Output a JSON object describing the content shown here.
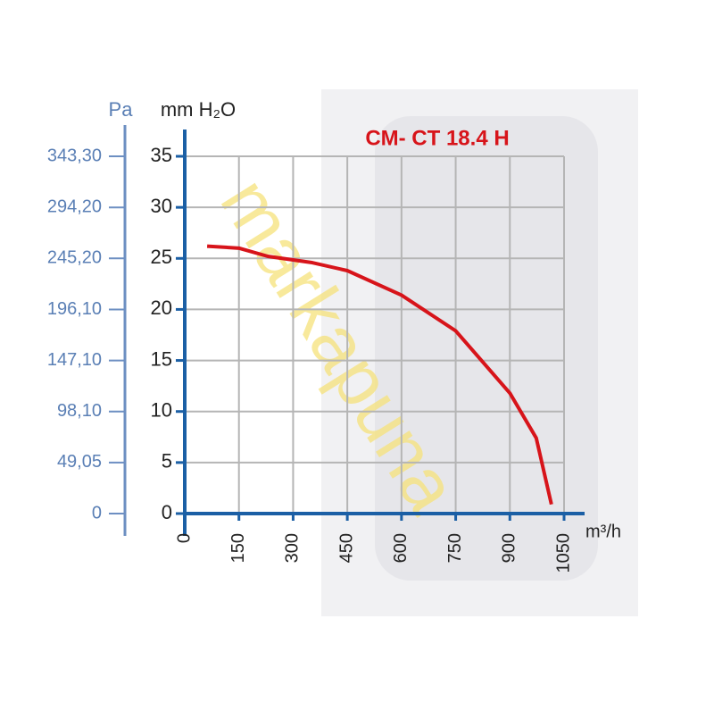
{
  "chart_data": {
    "type": "line",
    "title": "CM- CT 18.4 H",
    "ylabel": "mm H₂O",
    "y2label": "Pa",
    "xlabel": "m³/h",
    "watermark": "markapuna",
    "x": [
      62,
      150,
      230,
      350,
      450,
      600,
      750,
      900,
      973,
      1015
    ],
    "values": [
      26.2,
      26,
      25.2,
      24.6,
      23.8,
      21.4,
      17.9,
      11.8,
      7.4,
      0.9
    ],
    "color": "#d7141a",
    "xlim": [
      0,
      1050
    ],
    "xticks": [
      0,
      150,
      300,
      450,
      600,
      750,
      900,
      1050
    ],
    "ylim": [
      0,
      35
    ],
    "yticks": [
      0,
      5,
      10,
      15,
      20,
      25,
      30,
      35
    ],
    "y2lim": [
      0,
      343.3
    ],
    "y2ticks": [
      0,
      {
        "value": 49.05,
        "label": "49,05"
      },
      {
        "value": 98.1,
        "label": "98,10"
      },
      {
        "value": 147.1,
        "label": "147,10"
      },
      {
        "value": 196.1,
        "label": "196,10"
      },
      {
        "value": 245.2,
        "label": "245,20"
      },
      {
        "value": 294.2,
        "label": "294,20"
      },
      {
        "value": 343.3,
        "label": "343,30"
      }
    ],
    "grid": true
  }
}
